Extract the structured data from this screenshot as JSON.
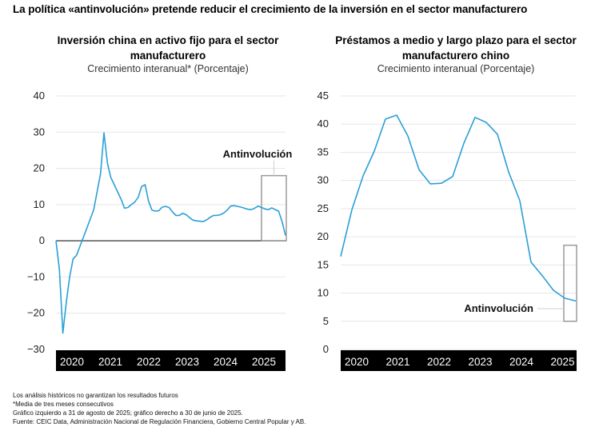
{
  "title": "La política «antinvolución» pretende reducir el crecimiento de la inversión en el sector manufacturero",
  "notes": [
    "Los análisis históricos no garantizan los resultados futuros",
    "*Media de tres meses consecutivos",
    "Gráfico izquierdo a 31 de agosto de 2025; gráfico derecho a 30 de junio de 2025.",
    "Fuente: CEIC Data, Administración Nacional de Regulación Financiera, Gobierno Central Popular y AB."
  ],
  "colors": {
    "line": "#2a9fd8",
    "grid": "#e6e6e6",
    "zero": "#555555",
    "box": "#9a9a9a",
    "axis_band": "#000000"
  },
  "chart_data": [
    {
      "type": "line",
      "title_lines": [
        "Inversión china en activo fijo para el sector",
        "manufacturero"
      ],
      "subtitle": "Crecimiento interanual* (Porcentaje)",
      "xlabel": "",
      "ylabel": "",
      "ylim": [
        -30,
        40
      ],
      "yticks": [
        40,
        30,
        20,
        10,
        0,
        -10,
        -20,
        -30
      ],
      "ytick_labels": [
        "40",
        "30",
        "20",
        "10",
        "0",
        "−10",
        "−20",
        "−30"
      ],
      "xticks": [
        "2020",
        "2021",
        "2022",
        "2023",
        "2024",
        "2025"
      ],
      "x_start": "2020-01",
      "x_end": "2025-08",
      "frequency": "monthly",
      "grid": true,
      "zero_line": true,
      "annotation": {
        "label": "Antinvolución",
        "range": [
          "2025-01",
          "2025-08"
        ],
        "y_range": [
          0,
          18
        ]
      },
      "series": [
        {
          "name": "Inversión en activo fijo manufacturero",
          "values": [
            0,
            -8,
            -25.5,
            -17,
            -10,
            -5,
            -4,
            -1.5,
            1,
            3.5,
            6,
            8.5,
            13.5,
            18.5,
            29.8,
            21.5,
            17.5,
            15.5,
            13.5,
            11.5,
            9,
            9.2,
            10,
            10.7,
            12,
            15,
            15.5,
            11,
            8.5,
            8.2,
            8.3,
            9.3,
            9.5,
            9.2,
            8,
            7,
            7,
            7.6,
            7.2,
            6.4,
            5.7,
            5.5,
            5.4,
            5.3,
            5.8,
            6.5,
            7,
            7,
            7.2,
            7.7,
            8.5,
            9.6,
            9.7,
            9.5,
            9.3,
            9,
            8.7,
            8.6,
            9,
            9.6,
            9.2,
            8.8,
            8.6,
            9.1,
            8.6,
            8.2,
            5.3,
            1.5
          ]
        }
      ]
    },
    {
      "type": "line",
      "title_lines": [
        "Préstamos a medio y largo plazo para el sector",
        "manufacturero chino"
      ],
      "subtitle": "Crecimiento interanual (Porcentaje)",
      "xlabel": "",
      "ylabel": "",
      "ylim": [
        0,
        45
      ],
      "yticks": [
        45,
        40,
        35,
        30,
        25,
        20,
        15,
        10,
        5,
        0
      ],
      "ytick_labels": [
        "45",
        "40",
        "35",
        "30",
        "25",
        "20",
        "15",
        "10",
        "5",
        "0"
      ],
      "xticks": [
        "2020",
        "2021",
        "2022",
        "2023",
        "2024",
        "2025"
      ],
      "x_start": "2020-Q1",
      "x_end": "2025-Q2",
      "frequency": "quarterly",
      "grid": true,
      "zero_line": false,
      "annotation": {
        "label": "Antinvolución",
        "range": [
          "2025-Q1",
          "2025-Q2"
        ],
        "y_range": [
          5,
          18.5
        ]
      },
      "series": [
        {
          "name": "Préstamos a medio y largo plazo manufactureros",
          "values": [
            16.5,
            24.8,
            30.8,
            35.2,
            40.9,
            41.6,
            37.9,
            31.9,
            29.4,
            29.5,
            30.7,
            36.6,
            41.2,
            40.3,
            38.2,
            31.5,
            26.4,
            15.5,
            13.1,
            10.5,
            9.1,
            8.6
          ]
        }
      ]
    }
  ]
}
